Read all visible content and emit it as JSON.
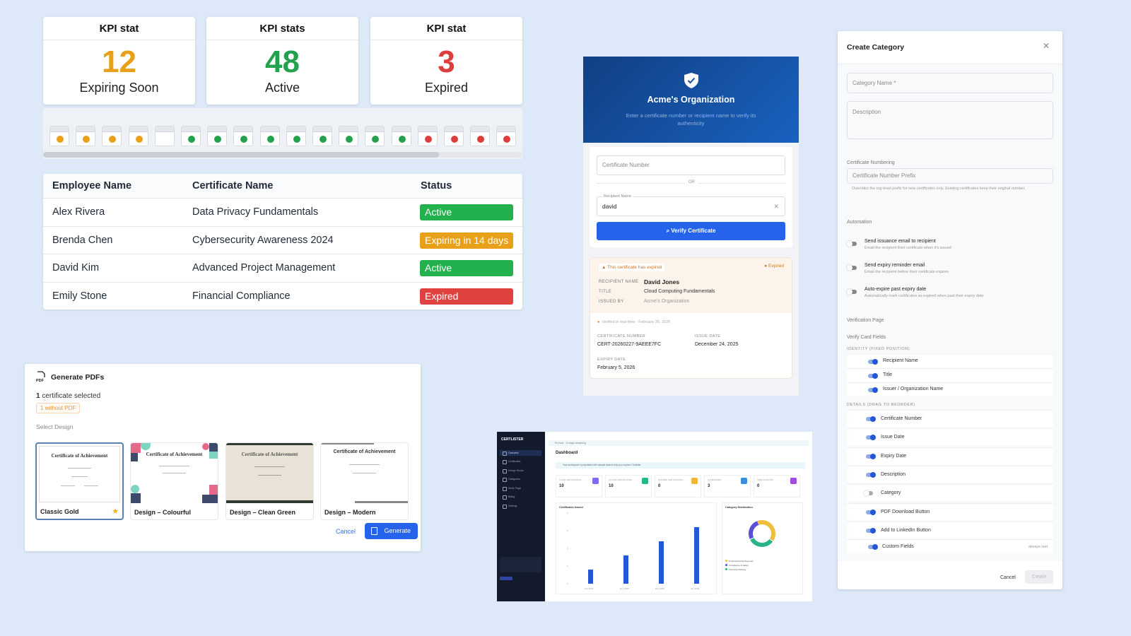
{
  "kpis": [
    {
      "header": "KPI stat",
      "value": "12",
      "label": "Expiring Soon",
      "color": "#e8a019"
    },
    {
      "header": "KPI stats",
      "value": "48",
      "label": "Active",
      "color": "#24a14d"
    },
    {
      "header": "KPI stat",
      "value": "3",
      "label": "Expired",
      "color": "#dc3d3d"
    }
  ],
  "calendar_strip": {
    "days": [
      "orange",
      "orange",
      "orange",
      "orange",
      "empty",
      "green",
      "green",
      "green",
      "green",
      "green",
      "green",
      "green",
      "green",
      "green",
      "red",
      "red",
      "red",
      "red"
    ],
    "colors": {
      "orange": "#e8a019",
      "green": "#24a14d",
      "red": "#dc3d3d"
    }
  },
  "employee_table": {
    "headers": [
      "Employee Name",
      "Certificate Name",
      "Status"
    ],
    "rows": [
      {
        "employee": "Alex Rivera",
        "certificate": "Data Privacy Fundamentals",
        "status": "Active",
        "status_color": "#22b14c"
      },
      {
        "employee": "Brenda Chen",
        "certificate": "Cybersecurity Awareness 2024",
        "status": "Expiring in 14 days",
        "status_color": "#e8a019"
      },
      {
        "employee": "David Kim",
        "certificate": "Advanced Project Management",
        "status": "Active",
        "status_color": "#22b14c"
      },
      {
        "employee": "Emily Stone",
        "certificate": "Financial Compliance",
        "status": "Expired",
        "status_color": "#e04141"
      }
    ]
  },
  "generate_pdfs": {
    "title": "Generate PDFs",
    "icon": "pdf-file-icon",
    "selected_count": "1",
    "selected_text": " certificate selected",
    "chip": "1 without PDF",
    "select_design_label": "Select Design",
    "designs": [
      {
        "name": "Classic Gold",
        "preview_title": "Certificate of Achievement",
        "selected": true,
        "starred": true
      },
      {
        "name": "Design – Colourful",
        "preview_title": "Certificate of Achievement",
        "selected": false
      },
      {
        "name": "Design – Clean Green",
        "preview_title": "Certificate of Achievement",
        "selected": false
      },
      {
        "name": "Design – Modern",
        "preview_title": "Certificate of Achievement",
        "selected": false
      }
    ],
    "cancel_label": "Cancel",
    "generate_label": "Generate"
  },
  "verify": {
    "org_name": "Acme's Organization",
    "subtitle": "Enter a certificate number or recipient name to verify its authenticity",
    "cert_number_placeholder": "Certificate Number",
    "or_label": "OR",
    "recipient_label": "Recipient Name",
    "recipient_value": "david",
    "verify_button": "Verify Certificate",
    "result": {
      "warning": "This certificate has expired",
      "status": "Expired",
      "recipient_key": "RECIPIENT NAME",
      "recipient_value": "David Jones",
      "title_key": "TITLE",
      "title_value": "Cloud Computing Fundamentals",
      "issued_key": "ISSUED BY",
      "issued_value": "Acme's Organization",
      "verified_text": "Verified in real-time · February 26, 2026",
      "cert_number_key": "CERTIFICATE NUMBER",
      "cert_number_value": "CERT-20260227-9AEEE7FC",
      "issue_date_key": "ISSUE DATE",
      "issue_date_value": "December 24, 2025",
      "expiry_date_key": "EXPIRY DATE",
      "expiry_date_value": "February 5, 2026"
    }
  },
  "dashboard": {
    "logo": "CERTLISTER",
    "nav": [
      "Overview",
      "Certificates",
      "Design Studio",
      "Categories",
      "Verify Page",
      "Billing",
      "Settings"
    ],
    "trial_banner": "Pro trial · 14 days remaining",
    "title": "Dashboard",
    "notice": "Your workspace is populated with sample data to help you explore Certlister.",
    "stats": [
      {
        "label": "TOTAL CERTIFICATES",
        "value": "10",
        "icon_color": "#7b6cf0"
      },
      {
        "label": "ACTIVE CERTIFICATES",
        "value": "10",
        "icon_color": "#22b88a"
      },
      {
        "label": "EXPIRED CERTIFICATES",
        "value": "0",
        "icon_color": "#f1b53a"
      },
      {
        "label": "CATEGORIES",
        "value": "3",
        "icon_color": "#3b8de0"
      },
      {
        "label": "VERIFICATIONS",
        "value": "0",
        "icon_color": "#a64be0"
      }
    ],
    "bar_chart": {
      "title": "Certificates Issued",
      "categories": [
        "Oct 2025",
        "Nov 2025",
        "Dec 2025",
        "Jan 2026"
      ],
      "values": [
        1,
        2,
        3,
        4
      ],
      "y_ticks": [
        "0",
        "1",
        "2",
        "3",
        "4"
      ]
    },
    "donut": {
      "title": "Category Distribution",
      "legend": [
        {
          "label": "Professional Development",
          "color": "#f1bd3a"
        },
        {
          "label": "Compliance & Safety",
          "color": "#5b4fd8"
        },
        {
          "label": "Technical Training",
          "color": "#2ab38a"
        }
      ]
    }
  },
  "create_category": {
    "title": "Create Category",
    "close_icon": "close-icon",
    "category_name_placeholder": "Category Name *",
    "description_placeholder": "Description",
    "numbering_label": "Certificate Numbering",
    "prefix_placeholder": "Certificate Number Prefix",
    "prefix_help": "Overrides the org-level prefix for new certificates only. Existing certificates keep their original number.",
    "automation_label": "Automation",
    "automation": [
      {
        "title": "Send issuance email to recipient",
        "desc": "Email the recipient their certificate when it's issued",
        "on": false
      },
      {
        "title": "Send expiry reminder email",
        "desc": "Email the recipient before their certificate expires",
        "on": false
      },
      {
        "title": "Auto-expire past expiry date",
        "desc": "Automatically mark certificates as expired when past their expiry date",
        "on": false
      }
    ],
    "verification_page_label": "Verification Page",
    "verify_card_label": "Verify Card Fields",
    "identity_label": "IDENTITY (FIXED POSITION)",
    "identity_fields": [
      {
        "label": "Recipient Name",
        "on": true
      },
      {
        "label": "Title",
        "on": true
      },
      {
        "label": "Issuer / Organization Name",
        "on": true
      }
    ],
    "details_label": "DETAILS (DRAG TO REORDER)",
    "detail_fields": [
      {
        "label": "Certificate Number",
        "on": true
      },
      {
        "label": "Issue Date",
        "on": true
      },
      {
        "label": "Expiry Date",
        "on": true
      },
      {
        "label": "Description",
        "on": true
      },
      {
        "label": "Category",
        "on": false
      },
      {
        "label": "PDF Download Button",
        "on": true
      },
      {
        "label": "Add to LinkedIn Button",
        "on": true
      }
    ],
    "custom_fields": {
      "label": "Custom Fields",
      "note": "always last",
      "on": true
    },
    "cancel_label": "Cancel",
    "create_label": "Create"
  }
}
